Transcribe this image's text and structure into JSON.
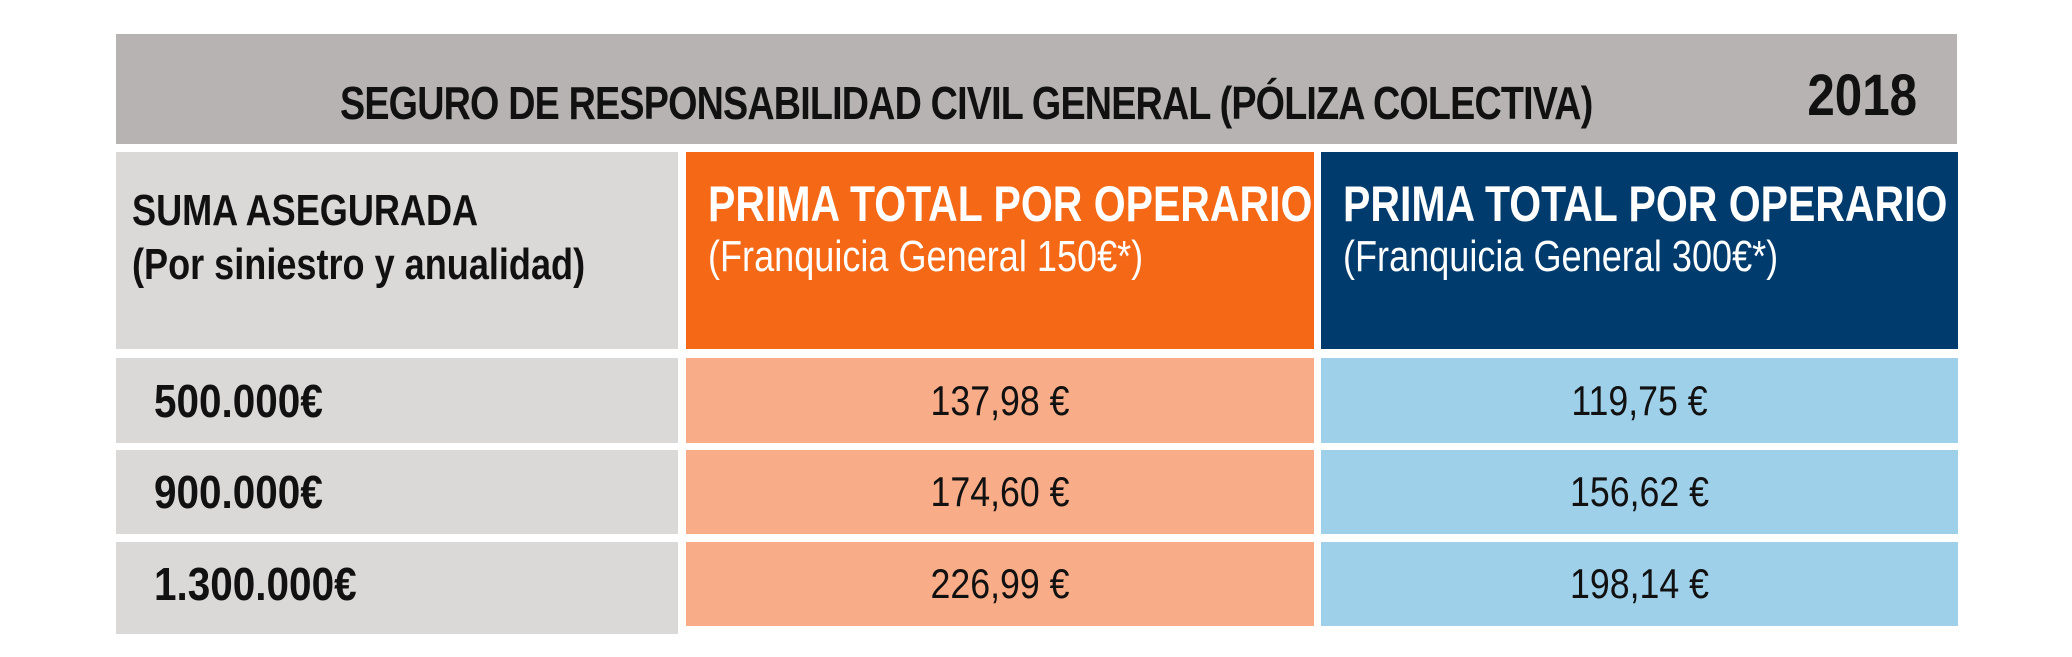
{
  "title": "SEGURO DE RESPONSABILIDAD CIVIL GENERAL (PÓLIZA COLECTIVA)",
  "year": "2018",
  "header": {
    "suma_line1": "SUMA ASEGURADA",
    "suma_line2": "(Por siniestro y anualidad)",
    "col2_title": "PRIMA TOTAL POR OPERARIO",
    "col2_sub": "(Franquicia General 150€*)",
    "col3_title": "PRIMA TOTAL POR OPERARIO",
    "col3_sub": "(Franquicia  General 300€*)"
  },
  "rows": [
    {
      "suma": "500.000€",
      "prima150": "137,98 €",
      "prima300": "119,75 €"
    },
    {
      "suma": "900.000€",
      "prima150": "174,60 €",
      "prima300": "156,62 €"
    },
    {
      "suma": "1.300.000€",
      "prima150": "226,99 €",
      "prima300": "198,14 €"
    }
  ],
  "colors": {
    "title_bg": "#b7b3b3",
    "suma_bg": "#dbd8d8",
    "orange_header": "#f46816",
    "orange_cell": "#f8ac87",
    "blue_header": "#003b6e",
    "blue_cell": "#9fd0ea"
  }
}
